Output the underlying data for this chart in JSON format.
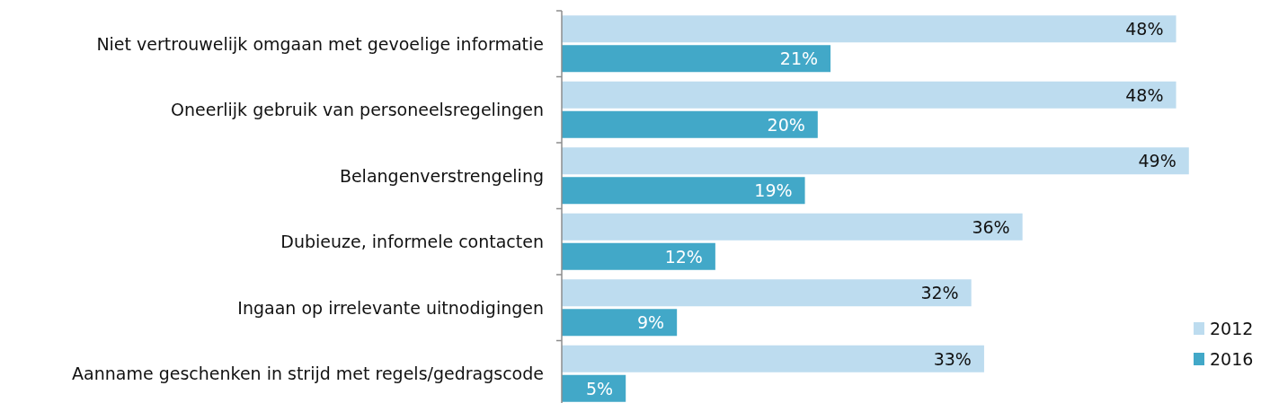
{
  "chart_data": {
    "type": "bar",
    "orientation": "horizontal",
    "categories": [
      "Niet vertrouwelijk omgaan met gevoelige informatie",
      "Oneerlijk gebruik van personeelsregelingen",
      "Belangenverstrengeling",
      "Dubieuze, informele contacten",
      "Ingaan op irrelevante uitnodigingen",
      "Aanname geschenken in strijd met regels/gedragscode"
    ],
    "series": [
      {
        "name": "2012",
        "color": "#bddcef",
        "values": [
          48,
          48,
          49,
          36,
          32,
          33
        ],
        "value_labels": [
          "48%",
          "48%",
          "49%",
          "36%",
          "32%",
          "33%"
        ]
      },
      {
        "name": "2016",
        "color": "#42a8c8",
        "values": [
          21,
          20,
          19,
          12,
          9,
          5
        ],
        "value_labels": [
          "21%",
          "20%",
          "19%",
          "12%",
          "9%",
          "5%"
        ]
      }
    ],
    "xlim": [
      0,
      50
    ],
    "legend": "bottom right"
  }
}
